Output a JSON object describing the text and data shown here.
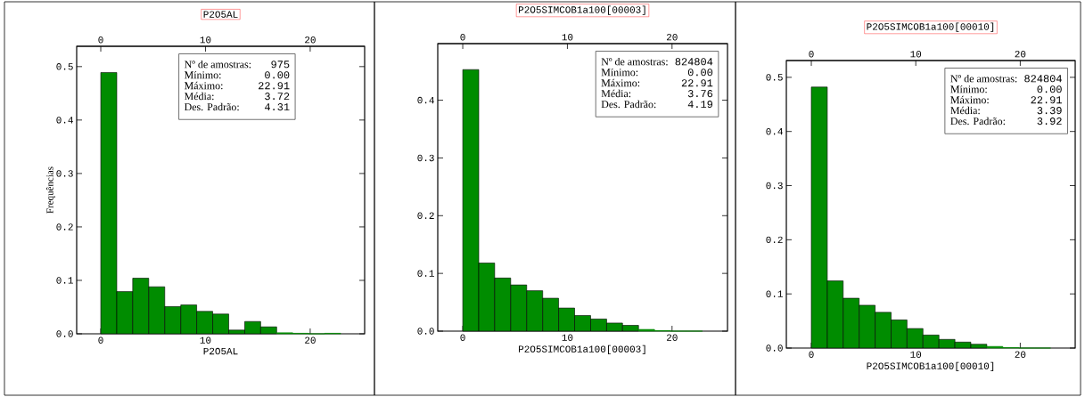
{
  "chart_data": [
    {
      "type": "histogram",
      "title": "P2O5AL",
      "xlabel": "P2O5AL",
      "ylabel": "Frequências",
      "color": "#008c00",
      "bins": [
        0,
        1.53,
        3.05,
        4.58,
        6.11,
        7.64,
        9.16,
        10.69,
        12.22,
        13.75,
        15.27,
        16.8,
        18.33,
        19.85,
        21.38,
        22.91
      ],
      "values": [
        0.489,
        0.079,
        0.104,
        0.088,
        0.051,
        0.054,
        0.042,
        0.037,
        0.007,
        0.023,
        0.013,
        0.002,
        0.001,
        0,
        0.001
      ],
      "xlim": [
        -2.3,
        25.2
      ],
      "xticks": [
        0,
        10,
        20
      ],
      "x2lim": [
        -2.3,
        25.2
      ],
      "x2ticks": [
        0,
        10,
        20
      ],
      "ylim": [
        0,
        0.538
      ],
      "yticks": [
        {
          "value": 0,
          "label": "0.0"
        },
        {
          "value": 0.1,
          "label": "0.1"
        },
        {
          "value": 0.2,
          "label": "0.2"
        },
        {
          "value": 0.3,
          "label": "0.3"
        },
        {
          "value": 0.4,
          "label": "0.4"
        },
        {
          "value": 0.5,
          "label": "0.5"
        }
      ],
      "annotations": [
        "Nº de amostras:",
        "975",
        "Mínimo:",
        "0.00",
        "Máximo:",
        "22.91",
        "Média:",
        "3.72",
        "Des. Padrão:",
        "4.31"
      ]
    },
    {
      "type": "histogram",
      "title": "P2O5SIMCOB1a100[00003]",
      "xlabel": "P2O5SIMCOB1a100[00003]",
      "color": "#008c00",
      "bins": [
        0,
        1.53,
        3.05,
        4.58,
        6.11,
        7.64,
        9.16,
        10.69,
        12.22,
        13.75,
        15.27,
        16.8,
        18.33,
        19.85,
        21.38,
        22.91
      ],
      "values": [
        0.453,
        0.118,
        0.092,
        0.08,
        0.07,
        0.057,
        0.04,
        0.027,
        0.021,
        0.014,
        0.01,
        0.003,
        0.001,
        0,
        0
      ],
      "xlim": [
        -2.39,
        25.3
      ],
      "xticks": [
        0,
        10,
        20
      ],
      "x2lim": [
        -2.39,
        25.3
      ],
      "x2ticks": [
        0,
        10,
        20
      ],
      "ylim": [
        0,
        0.498
      ],
      "yticks": [
        {
          "value": 0,
          "label": "0.0"
        },
        {
          "value": 0.1,
          "label": "0.1"
        },
        {
          "value": 0.2,
          "label": "0.2"
        },
        {
          "value": 0.3,
          "label": "0.3"
        },
        {
          "value": 0.4,
          "label": "0.4"
        }
      ],
      "annotations": [
        "Nº de amostras:",
        "824804",
        "Mínimo:",
        "0.00",
        "Máximo:",
        "22.91",
        "Média:",
        "3.76",
        "Des. Padrão:",
        "4.19"
      ]
    },
    {
      "type": "histogram",
      "title": "P2O5SIMCOB1a100[00010]",
      "xlabel": "P2O5SIMCOB1a100[00010]",
      "color": "#008c00",
      "bins": [
        0,
        1.53,
        3.05,
        4.58,
        6.11,
        7.64,
        9.16,
        10.69,
        12.22,
        13.75,
        15.27,
        16.8,
        18.33,
        19.85,
        21.38,
        22.91
      ],
      "values": [
        0.482,
        0.124,
        0.092,
        0.079,
        0.066,
        0.052,
        0.036,
        0.024,
        0.016,
        0.011,
        0.007,
        0.003,
        0.001,
        0,
        0
      ],
      "xlim": [
        -2.39,
        25.26
      ],
      "xticks": [
        0,
        10,
        20
      ],
      "x2lim": [
        -2.39,
        25.26
      ],
      "x2ticks": [
        0,
        10,
        20
      ],
      "ylim": [
        0,
        0.531
      ],
      "yticks": [
        {
          "value": 0,
          "label": "0.0"
        },
        {
          "value": 0.1,
          "label": "0.1"
        },
        {
          "value": 0.2,
          "label": "0.2"
        },
        {
          "value": 0.3,
          "label": "0.3"
        },
        {
          "value": 0.4,
          "label": "0.4"
        },
        {
          "value": 0.5,
          "label": "0.5"
        }
      ],
      "annotations": [
        "Nº de amostras:",
        "824804",
        "Mínimo:",
        "0.00",
        "Máximo:",
        "22.91",
        "Média:",
        "3.39",
        "Des. Padrão:",
        "3.92"
      ]
    }
  ]
}
